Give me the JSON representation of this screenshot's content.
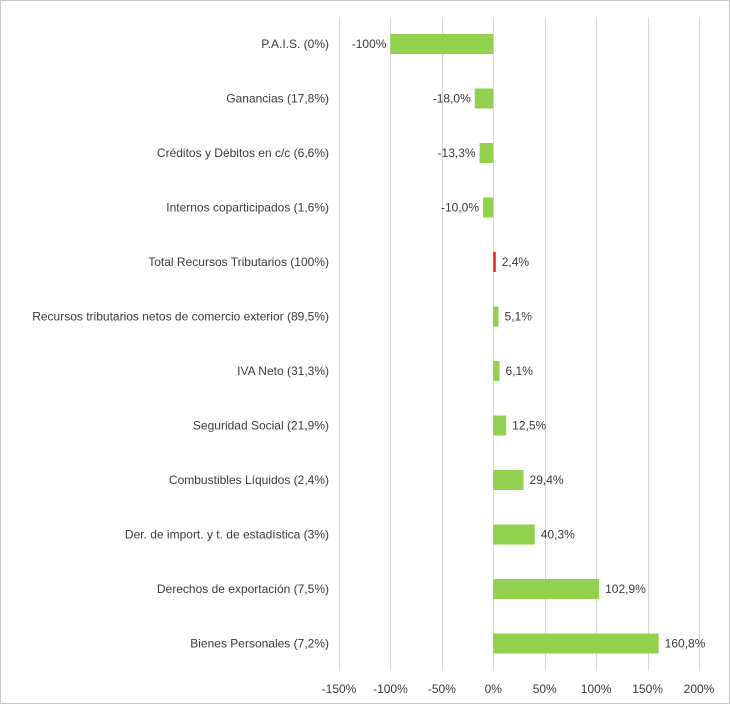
{
  "chart_data": {
    "type": "bar",
    "orientation": "horizontal",
    "categories": [
      "P.A.I.S. (0%)",
      "Ganancias (17,8%)",
      "Créditos y Débitos en c/c (6,6%)",
      "Internos coparticipados (1,6%)",
      "Total Recursos Tributarios (100%)",
      "Recursos tributarios netos de comercio exterior (89,5%)",
      "IVA Neto (31,3%)",
      "Seguridad Social (21,9%)",
      "Combustibles Líquidos (2,4%)",
      "Der. de import. y t. de estadística (3%)",
      "Derechos de exportación (7,5%)",
      "Bienes Personales (7,2%)"
    ],
    "values": [
      -100,
      -18.0,
      -13.3,
      -10.0,
      2.4,
      5.1,
      6.1,
      12.5,
      29.4,
      40.3,
      102.9,
      160.8
    ],
    "data_labels": [
      "-100%",
      "-18,0%",
      "-13,3%",
      "-10,0%",
      "2,4%",
      "5,1%",
      "6,1%",
      "12,5%",
      "29,4%",
      "40,3%",
      "102,9%",
      "160,8%"
    ],
    "bar_colors": [
      "#92d050",
      "#92d050",
      "#92d050",
      "#92d050",
      "#e02020",
      "#92d050",
      "#92d050",
      "#92d050",
      "#92d050",
      "#92d050",
      "#92d050",
      "#92d050"
    ],
    "xlim": [
      -150,
      200
    ],
    "xticks": [
      -150,
      -100,
      -50,
      0,
      50,
      100,
      150,
      200
    ],
    "xtick_labels": [
      "-150%",
      "-100%",
      "-50%",
      "0%",
      "50%",
      "100%",
      "150%",
      "200%"
    ],
    "grid": "vertical",
    "legend": "none"
  }
}
